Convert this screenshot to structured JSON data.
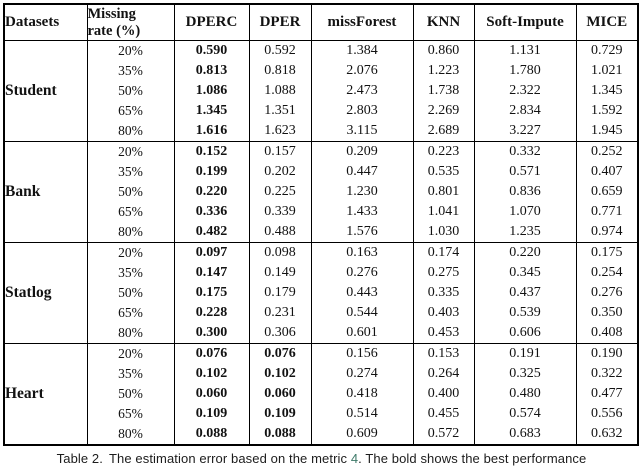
{
  "colors": {
    "text": "#121212",
    "border": "#000000",
    "caption_link": "#3d7968"
  },
  "table": {
    "header": {
      "datasets": "Datasets",
      "missing_rate": [
        "Missing",
        "rate (%)"
      ],
      "methods": [
        "DPERC",
        "DPER",
        "missForest",
        "KNN",
        "Soft-Impute",
        "MICE"
      ]
    },
    "groups": [
      {
        "dataset": "Student",
        "rows": [
          {
            "rate": "20%",
            "values": [
              "0.590",
              "0.592",
              "1.384",
              "0.860",
              "1.131",
              "0.729"
            ],
            "bold": [
              0
            ]
          },
          {
            "rate": "35%",
            "values": [
              "0.813",
              "0.818",
              "2.076",
              "1.223",
              "1.780",
              "1.021"
            ],
            "bold": [
              0
            ]
          },
          {
            "rate": "50%",
            "values": [
              "1.086",
              "1.088",
              "2.473",
              "1.738",
              "2.322",
              "1.345"
            ],
            "bold": [
              0
            ]
          },
          {
            "rate": "65%",
            "values": [
              "1.345",
              "1.351",
              "2.803",
              "2.269",
              "2.834",
              "1.592"
            ],
            "bold": [
              0
            ]
          },
          {
            "rate": "80%",
            "values": [
              "1.616",
              "1.623",
              "3.115",
              "2.689",
              "3.227",
              "1.945"
            ],
            "bold": [
              0
            ]
          }
        ]
      },
      {
        "dataset": "Bank",
        "rows": [
          {
            "rate": "20%",
            "values": [
              "0.152",
              "0.157",
              "0.209",
              "0.223",
              "0.332",
              "0.252"
            ],
            "bold": [
              0
            ]
          },
          {
            "rate": "35%",
            "values": [
              "0.199",
              "0.202",
              "0.447",
              "0.535",
              "0.571",
              "0.407"
            ],
            "bold": [
              0
            ]
          },
          {
            "rate": "50%",
            "values": [
              "0.220",
              "0.225",
              "1.230",
              "0.801",
              "0.836",
              "0.659"
            ],
            "bold": [
              0
            ]
          },
          {
            "rate": "65%",
            "values": [
              "0.336",
              "0.339",
              "1.433",
              "1.041",
              "1.070",
              "0.771"
            ],
            "bold": [
              0
            ]
          },
          {
            "rate": "80%",
            "values": [
              "0.482",
              "0.488",
              "1.576",
              "1.030",
              "1.235",
              "0.974"
            ],
            "bold": [
              0
            ]
          }
        ]
      },
      {
        "dataset": "Statlog",
        "rows": [
          {
            "rate": "20%",
            "values": [
              "0.097",
              "0.098",
              "0.163",
              "0.174",
              "0.220",
              "0.175"
            ],
            "bold": [
              0
            ]
          },
          {
            "rate": "35%",
            "values": [
              "0.147",
              "0.149",
              "0.276",
              "0.275",
              "0.345",
              "0.254"
            ],
            "bold": [
              0
            ]
          },
          {
            "rate": "50%",
            "values": [
              "0.175",
              "0.179",
              "0.443",
              "0.335",
              "0.437",
              "0.276"
            ],
            "bold": [
              0
            ]
          },
          {
            "rate": "65%",
            "values": [
              "0.228",
              "0.231",
              "0.544",
              "0.403",
              "0.539",
              "0.350"
            ],
            "bold": [
              0
            ]
          },
          {
            "rate": "80%",
            "values": [
              "0.300",
              "0.306",
              "0.601",
              "0.453",
              "0.606",
              "0.408"
            ],
            "bold": [
              0
            ]
          }
        ]
      },
      {
        "dataset": "Heart",
        "rows": [
          {
            "rate": "20%",
            "values": [
              "0.076",
              "0.076",
              "0.156",
              "0.153",
              "0.191",
              "0.190"
            ],
            "bold": [
              0,
              1
            ]
          },
          {
            "rate": "35%",
            "values": [
              "0.102",
              "0.102",
              "0.274",
              "0.264",
              "0.325",
              "0.322"
            ],
            "bold": [
              0,
              1
            ]
          },
          {
            "rate": "50%",
            "values": [
              "0.060",
              "0.060",
              "0.418",
              "0.400",
              "0.480",
              "0.477"
            ],
            "bold": [
              0,
              1
            ]
          },
          {
            "rate": "65%",
            "values": [
              "0.109",
              "0.109",
              "0.514",
              "0.455",
              "0.574",
              "0.556"
            ],
            "bold": [
              0,
              1
            ]
          },
          {
            "rate": "80%",
            "values": [
              "0.088",
              "0.088",
              "0.609",
              "0.572",
              "0.683",
              "0.632"
            ],
            "bold": [
              0,
              1
            ]
          }
        ]
      }
    ]
  },
  "caption": {
    "label": "Table 2.",
    "text": "The estimation error based on the metric ",
    "link": "4",
    "tail": ". The bold shows the best performance"
  }
}
